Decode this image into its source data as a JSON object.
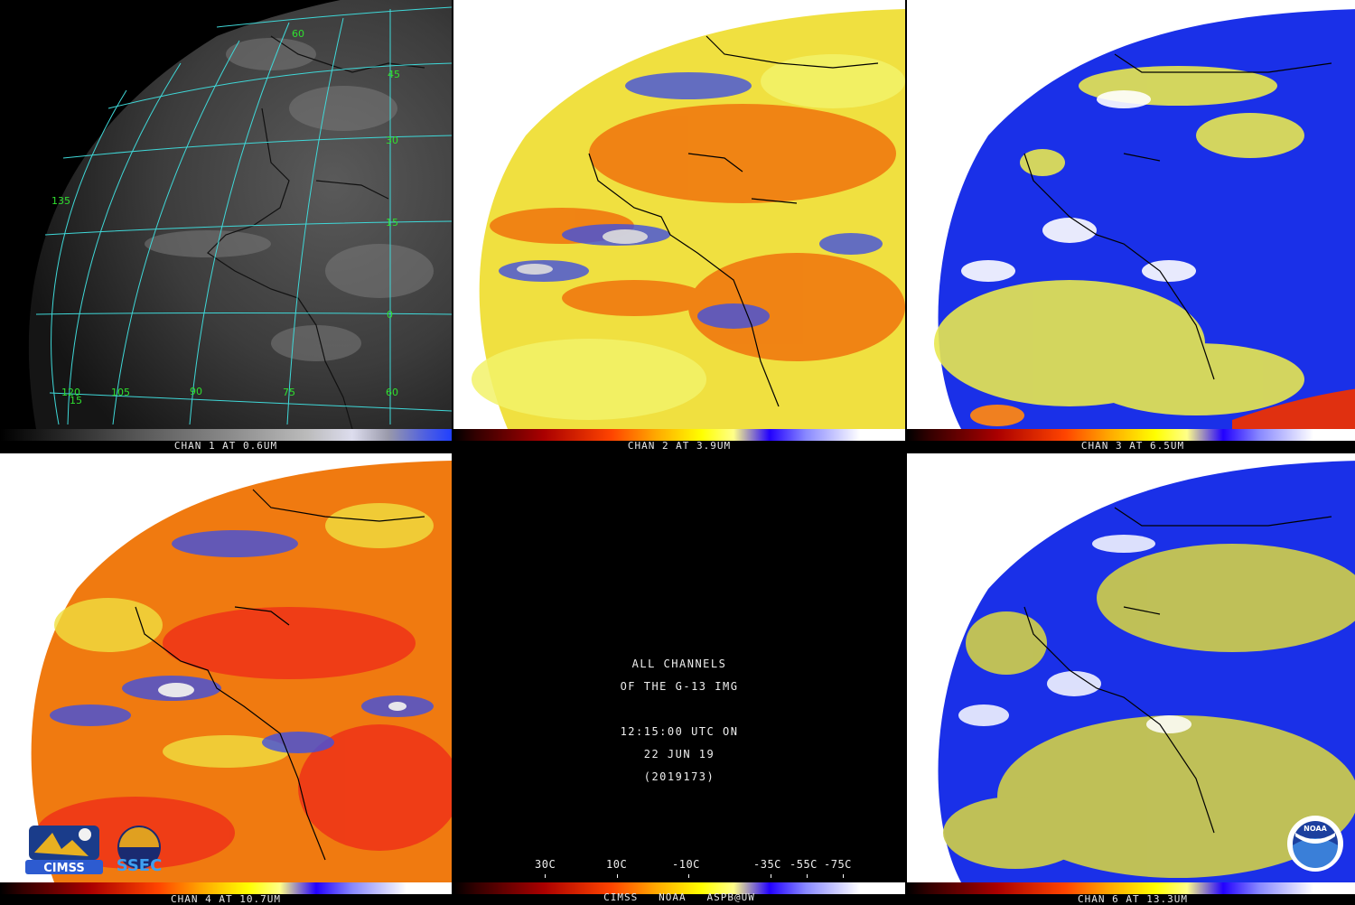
{
  "panels": [
    {
      "caption": "CHAN 1 AT 0.6UM"
    },
    {
      "caption": "CHAN 2 AT 3.9UM"
    },
    {
      "caption": "CHAN 3 AT 6.5UM"
    },
    {
      "caption": "CHAN 4 AT 10.7UM"
    },
    {
      "caption": "CHAN 6 AT 13.3UM"
    }
  ],
  "grid_labels": {
    "lat_60": "60",
    "lat_45": "45",
    "lat_30": "30",
    "lat_15": "15",
    "lat_0": "0",
    "lat_15_bottom": "15",
    "lon_135": "135",
    "lon_120": "120",
    "lon_105": "105",
    "lon_90": "90",
    "lon_75": "75",
    "lon_60": "60"
  },
  "center": {
    "line1": "ALL CHANNELS",
    "line2": "OF THE G-13 IMG",
    "line3": "12:15:00 UTC ON",
    "line4": "22 JUN 19",
    "line5": "(2019173)",
    "scale_labels": [
      "30C",
      "10C",
      "-10C",
      "-35C",
      "-55C",
      "-75C"
    ],
    "footer": "CIMSS   NOAA   ASPB@UW"
  },
  "logos": {
    "cimss": "CIMSS",
    "ssec": "SSEC",
    "noaa": "NOAA"
  },
  "colors": {
    "grid": "#3fd8d8",
    "grid_label": "#2fe02f",
    "background": "#000000"
  }
}
